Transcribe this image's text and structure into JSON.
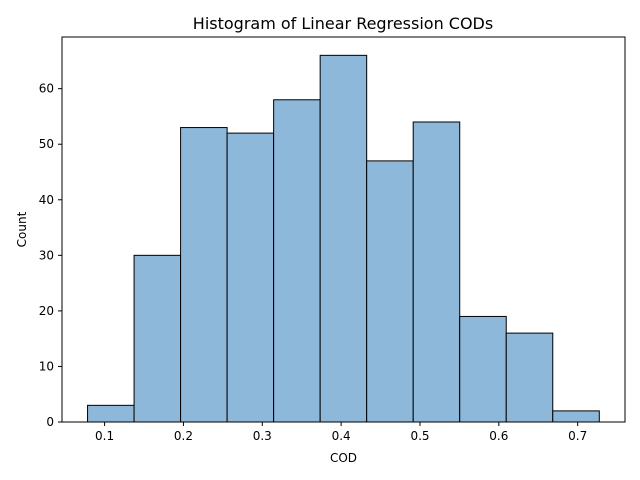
{
  "chart_data": {
    "type": "bar",
    "title": "Histogram of Linear Regression CODs",
    "xlabel": "COD",
    "ylabel": "Count",
    "bin_edges": [
      0.0784,
      0.1374,
      0.1964,
      0.2554,
      0.3144,
      0.3734,
      0.4324,
      0.4914,
      0.5504,
      0.6094,
      0.6684,
      0.7274
    ],
    "values": [
      3,
      30,
      53,
      52,
      58,
      66,
      47,
      54,
      19,
      16,
      2
    ],
    "xlim": [
      0.046,
      0.76
    ],
    "ylim": [
      0,
      69.3
    ],
    "xticks": [
      0.1,
      0.2,
      0.3,
      0.4,
      0.5,
      0.6,
      0.7
    ],
    "xtick_labels": [
      "0.1",
      "0.2",
      "0.3",
      "0.4",
      "0.5",
      "0.6",
      "0.7"
    ],
    "yticks": [
      0,
      10,
      20,
      30,
      40,
      50,
      60
    ],
    "ytick_labels": [
      "0",
      "10",
      "20",
      "30",
      "40",
      "50",
      "60"
    ],
    "grid": false,
    "colors": {
      "bar_fill": "#8db8d9",
      "bar_edge": "#000000",
      "axes": "#000000",
      "background": "#ffffff"
    }
  }
}
